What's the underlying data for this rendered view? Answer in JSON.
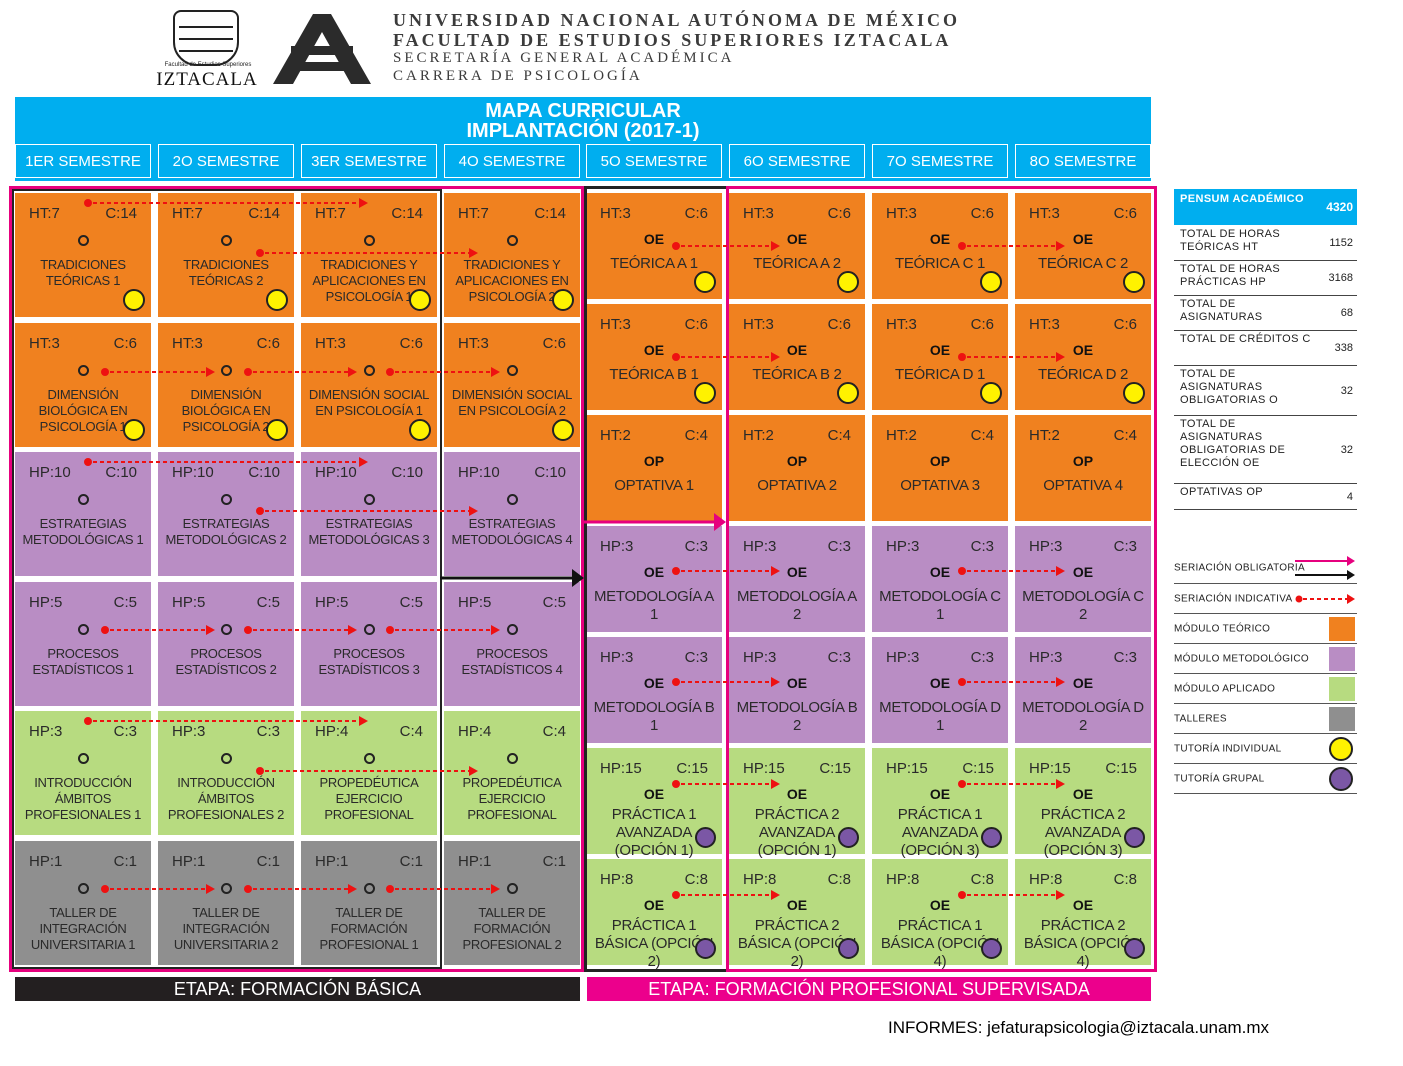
{
  "header": {
    "logo_small_text": "Facultad de Estudios Superiores",
    "logo_big_text": "IZTACALA",
    "line1": "UNIVERSIDAD NACIONAL AUTÓNOMA DE MÉXICO",
    "line2": "FACULTAD DE ESTUDIOS SUPERIORES IZTACALA",
    "line3": "SECRETARÍA GENERAL ACADÉMICA",
    "line4": "CARRERA DE PSICOLOGÍA"
  },
  "title": {
    "line1": "MAPA CURRICULAR",
    "line2": "IMPLANTACIÓN (2017-1)"
  },
  "semesters": [
    "1ER SEMESTRE",
    "2O SEMESTRE",
    "3ER SEMESTRE",
    "4O SEMESTRE",
    "5O SEMESTRE",
    "6O SEMESTRE",
    "7O SEMESTRE",
    "8O SEMESTRE"
  ],
  "basic": [
    [
      {
        "h1": "HT:7",
        "h2": "C:14",
        "name": "TRADICIONES TEÓRICAS 1"
      },
      {
        "h1": "HT:3",
        "h2": "C:6",
        "name": "DIMENSIÓN BIOLÓGICA EN PSICOLOGÍA 1"
      },
      {
        "h1": "HP:10",
        "h2": "C:10",
        "name": "ESTRATEGIAS METODOLÓGICAS 1"
      },
      {
        "h1": "HP:5",
        "h2": "C:5",
        "name": "PROCESOS ESTADÍSTICOS 1"
      },
      {
        "h1": "HP:3",
        "h2": "C:3",
        "name": "INTRODUCCIÓN ÁMBITOS PROFESIONALES 1"
      },
      {
        "h1": "HP:1",
        "h2": "C:1",
        "name": "TALLER DE INTEGRACIÓN UNIVERSITARIA 1"
      }
    ],
    [
      {
        "h1": "HT:7",
        "h2": "C:14",
        "name": "TRADICIONES TEÓRICAS 2"
      },
      {
        "h1": "HT:3",
        "h2": "C:6",
        "name": "DIMENSIÓN BIOLÓGICA EN PSICOLOGÍA 2"
      },
      {
        "h1": "HP:10",
        "h2": "C:10",
        "name": "ESTRATEGIAS METODOLÓGICAS 2"
      },
      {
        "h1": "HP:5",
        "h2": "C:5",
        "name": "PROCESOS ESTADÍSTICOS 2"
      },
      {
        "h1": "HP:3",
        "h2": "C:3",
        "name": "INTRODUCCIÓN ÁMBITOS PROFESIONALES 2"
      },
      {
        "h1": "HP:1",
        "h2": "C:1",
        "name": "TALLER DE INTEGRACIÓN UNIVERSITARIA 2"
      }
    ],
    [
      {
        "h1": "HT:7",
        "h2": "C:14",
        "name": "TRADICIONES Y APLICACIONES EN PSICOLOGÍA 1"
      },
      {
        "h1": "HT:3",
        "h2": "C:6",
        "name": "DIMENSIÓN SOCIAL EN PSICOLOGÍA 1"
      },
      {
        "h1": "HP:10",
        "h2": "C:10",
        "name": "ESTRATEGIAS METODOLÓGICAS 3"
      },
      {
        "h1": "HP:5",
        "h2": "C:5",
        "name": "PROCESOS ESTADÍSTICOS 3"
      },
      {
        "h1": "HP:4",
        "h2": "C:4",
        "name": "PROPEDÉUTICA EJERCICIO PROFESIONAL"
      },
      {
        "h1": "HP:1",
        "h2": "C:1",
        "name": "TALLER DE FORMACIÓN PROFESIONAL 1"
      }
    ],
    [
      {
        "h1": "HT:7",
        "h2": "C:14",
        "name": "TRADICIONES Y APLICACIONES EN PSICOLOGÍA 2"
      },
      {
        "h1": "HT:3",
        "h2": "C:6",
        "name": "DIMENSIÓN SOCIAL EN PSICOLOGÍA 2"
      },
      {
        "h1": "HP:10",
        "h2": "C:10",
        "name": "ESTRATEGIAS METODOLÓGICAS 4"
      },
      {
        "h1": "HP:5",
        "h2": "C:5",
        "name": "PROCESOS ESTADÍSTICOS 4"
      },
      {
        "h1": "HP:4",
        "h2": "C:4",
        "name": "PROPEDÉUTICA EJERCICIO PROFESIONAL"
      },
      {
        "h1": "HP:1",
        "h2": "C:1",
        "name": "TALLER DE FORMACIÓN PROFESIONAL 2"
      }
    ]
  ],
  "advanced": [
    [
      {
        "h1": "HT:3",
        "h2": "C:6",
        "tag": "OE",
        "name": "TEÓRICA A 1"
      },
      {
        "h1": "HT:3",
        "h2": "C:6",
        "tag": "OE",
        "name": "TEÓRICA B 1"
      },
      {
        "h1": "HT:2",
        "h2": "C:4",
        "tag": "OP",
        "name": "OPTATIVA 1"
      },
      {
        "h1": "HP:3",
        "h2": "C:3",
        "tag": "OE",
        "name": "METODOLOGÍA A 1"
      },
      {
        "h1": "HP:3",
        "h2": "C:3",
        "tag": "OE",
        "name": "METODOLOGÍA B 1"
      },
      {
        "h1": "HP:15",
        "h2": "C:15",
        "tag": "OE",
        "name": "PRÁCTICA 1 AVANZADA (OPCIÓN 1)"
      },
      {
        "h1": "HP:8",
        "h2": "C:8",
        "tag": "OE",
        "name": "PRÁCTICA 1 BÁSICA (OPCIÓN 2)"
      }
    ],
    [
      {
        "h1": "HT:3",
        "h2": "C:6",
        "tag": "OE",
        "name": "TEÓRICA A 2"
      },
      {
        "h1": "HT:3",
        "h2": "C:6",
        "tag": "OE",
        "name": "TEÓRICA B 2"
      },
      {
        "h1": "HT:2",
        "h2": "C:4",
        "tag": "OP",
        "name": "OPTATIVA 2"
      },
      {
        "h1": "HP:3",
        "h2": "C:3",
        "tag": "OE",
        "name": "METODOLOGÍA A 2"
      },
      {
        "h1": "HP:3",
        "h2": "C:3",
        "tag": "OE",
        "name": "METODOLOGÍA B 2"
      },
      {
        "h1": "HP:15",
        "h2": "C:15",
        "tag": "OE",
        "name": "PRÁCTICA 2 AVANZADA (OPCIÓN 1)"
      },
      {
        "h1": "HP:8",
        "h2": "C:8",
        "tag": "OE",
        "name": "PRÁCTICA 2 BÁSICA (OPCIÓN 2)"
      }
    ],
    [
      {
        "h1": "HT:3",
        "h2": "C:6",
        "tag": "OE",
        "name": "TEÓRICA C 1"
      },
      {
        "h1": "HT:3",
        "h2": "C:6",
        "tag": "OE",
        "name": "TEÓRICA D 1"
      },
      {
        "h1": "HT:2",
        "h2": "C:4",
        "tag": "OP",
        "name": "OPTATIVA 3"
      },
      {
        "h1": "HP:3",
        "h2": "C:3",
        "tag": "OE",
        "name": "METODOLOGÍA C 1"
      },
      {
        "h1": "HP:3",
        "h2": "C:3",
        "tag": "OE",
        "name": "METODOLOGÍA D 1"
      },
      {
        "h1": "HP:15",
        "h2": "C:15",
        "tag": "OE",
        "name": "PRÁCTICA 1 AVANZADA (OPCIÓN 3)"
      },
      {
        "h1": "HP:8",
        "h2": "C:8",
        "tag": "OE",
        "name": "PRÁCTICA 1 BÁSICA (OPCIÓN 4)"
      }
    ],
    [
      {
        "h1": "HT:3",
        "h2": "C:6",
        "tag": "OE",
        "name": "TEÓRICA C 2"
      },
      {
        "h1": "HT:3",
        "h2": "C:6",
        "tag": "OE",
        "name": "TEÓRICA D 2"
      },
      {
        "h1": "HT:2",
        "h2": "C:4",
        "tag": "OP",
        "name": "OPTATIVA 4"
      },
      {
        "h1": "HP:3",
        "h2": "C:3",
        "tag": "OE",
        "name": "METODOLOGÍA C 2"
      },
      {
        "h1": "HP:3",
        "h2": "C:3",
        "tag": "OE",
        "name": "METODOLOGÍA D 2"
      },
      {
        "h1": "HP:15",
        "h2": "C:15",
        "tag": "OE",
        "name": "PRÁCTICA 2 AVANZADA (OPCIÓN 3)"
      },
      {
        "h1": "HP:8",
        "h2": "C:8",
        "tag": "OE",
        "name": "PRÁCTICA 2 BÁSICA (OPCIÓN 4)"
      }
    ]
  ],
  "bands": {
    "basic": "ETAPA: FORMACIÓN BÁSICA",
    "professional": "ETAPA: FORMACIÓN PROFESIONAL SUPERVISADA"
  },
  "pensum": {
    "header_label": "PENSUM ACADÉMICO",
    "header_value": "4320",
    "rows": [
      {
        "label": "TOTAL DE HORAS TEÓRICAS HT",
        "value": "1152"
      },
      {
        "label": "TOTAL DE HORAS PRÁCTICAS HP",
        "value": "3168"
      },
      {
        "label": "TOTAL DE ASIGNATURAS",
        "value": "68"
      },
      {
        "label": "TOTAL DE CRÉDITOS C",
        "value": "338"
      },
      {
        "label": "TOTAL DE ASIGNATURAS OBLIGATORIAS O",
        "value": "32"
      },
      {
        "label": "TOTAL DE ASIGNATURAS OBLIGATORIAS DE ELECCIÓN OE",
        "value": "32"
      },
      {
        "label": "OPTATIVAS OP",
        "value": "4"
      }
    ]
  },
  "legend": {
    "seriacion_obligatoria": "SERIACIÓN OBLIGATORIA",
    "seriacion_indicativa": "SERIACIÓN INDICATIVA",
    "modulo_teorico": "MÓDULO TEÓRICO",
    "modulo_metodologico": "MÓDULO METODOLÓGICO",
    "modulo_aplicado": "MÓDULO APLICADO",
    "talleres": "TALLERES",
    "tutoria_individual": "TUTORÍA INDIVIDUAL",
    "tutoria_grupal": "TUTORÍA GRUPAL"
  },
  "colors": {
    "teorico": "#f0811f",
    "metodologico": "#b98dc4",
    "aplicado": "#b7db80",
    "talleres": "#8f8f8f",
    "header_blue": "#00aeef",
    "pink": "#e6007e",
    "tutoria_individual": "#fff200",
    "tutoria_grupal": "#7b57a5"
  },
  "footer": {
    "informes": "INFORMES: jefaturapsicologia@iztacala.unam.mx"
  }
}
